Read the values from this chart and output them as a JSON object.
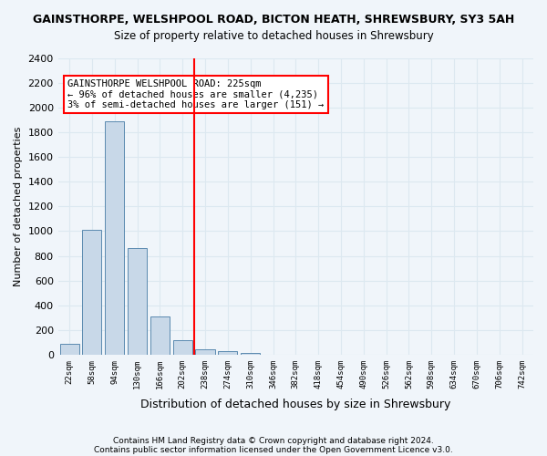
{
  "title_line1": "GAINSTHORPE, WELSHPOOL ROAD, BICTON HEATH, SHREWSBURY, SY3 5AH",
  "title_line2": "Size of property relative to detached houses in Shrewsbury",
  "xlabel": "Distribution of detached houses by size in Shrewsbury",
  "ylabel": "Number of detached properties",
  "bins": [
    "22sqm",
    "58sqm",
    "94sqm",
    "130sqm",
    "166sqm",
    "202sqm",
    "238sqm",
    "274sqm",
    "310sqm",
    "346sqm",
    "382sqm",
    "418sqm",
    "454sqm",
    "490sqm",
    "526sqm",
    "562sqm",
    "598sqm",
    "634sqm",
    "670sqm",
    "706sqm",
    "742sqm"
  ],
  "bar_values": [
    90,
    1010,
    1890,
    860,
    310,
    115,
    45,
    30,
    15,
    0,
    0,
    0,
    0,
    0,
    0,
    0,
    0,
    0,
    0,
    0,
    0
  ],
  "bar_color": "#c8d8e8",
  "bar_edge_color": "#5a8ab0",
  "vline_color": "red",
  "vline_pos": 5.5,
  "ylim": [
    0,
    2400
  ],
  "yticks": [
    0,
    200,
    400,
    600,
    800,
    1000,
    1200,
    1400,
    1600,
    1800,
    2000,
    2200,
    2400
  ],
  "annotation_title": "GAINSTHORPE WELSHPOOL ROAD: 225sqm",
  "annotation_line1": "← 96% of detached houses are smaller (4,235)",
  "annotation_line2": "3% of semi-detached houses are larger (151) →",
  "annotation_box_color": "red",
  "footnote1": "Contains HM Land Registry data © Crown copyright and database right 2024.",
  "footnote2": "Contains public sector information licensed under the Open Government Licence v3.0.",
  "grid_color": "#dce8f0",
  "background_color": "#f0f5fa"
}
